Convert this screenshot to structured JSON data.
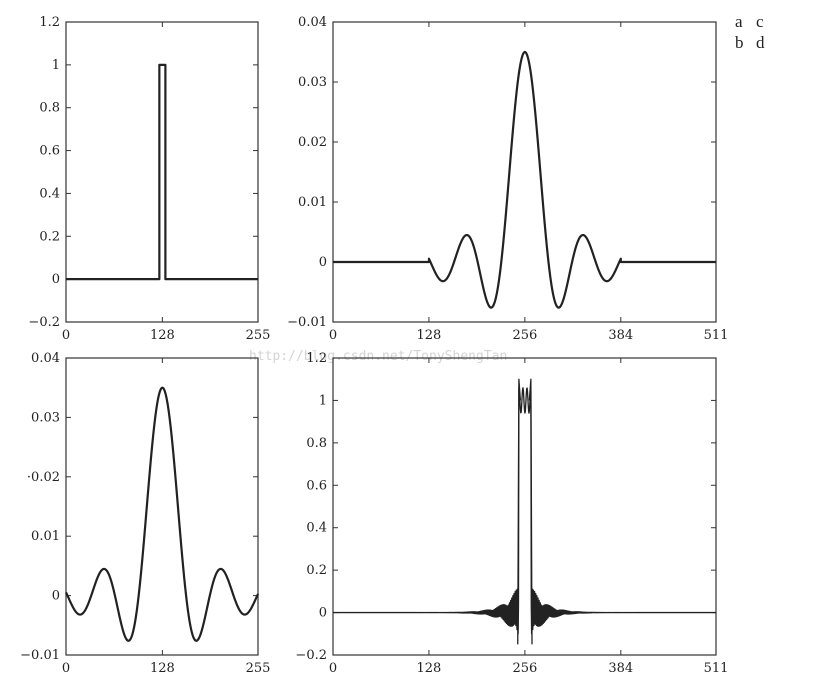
{
  "panel_labels": {
    "row1": [
      "a",
      "c"
    ],
    "row2": [
      "b",
      "d"
    ]
  },
  "watermark": "http://blog.csdn.net/TonyShengTan",
  "chart_data": [
    {
      "id": "a",
      "type": "line",
      "title": "",
      "xlabel": "",
      "ylabel": "",
      "xlim": [
        0,
        255
      ],
      "ylim": [
        -0.2,
        1.2
      ],
      "xticks": [
        0,
        128,
        255
      ],
      "yticks": [
        -0.2,
        0,
        0.2,
        0.4,
        0.6,
        0.8,
        1,
        1.2
      ],
      "ytick_labels": [
        "−0.2",
        "0",
        "0.2",
        "0.4",
        "0.6",
        "0.8",
        "1",
        "1.2"
      ],
      "xtick_labels": [
        "0",
        "128",
        "255"
      ],
      "series": [
        {
          "shape": "rectangular pulse",
          "x_start": 124,
          "x_end": 132,
          "height": 1,
          "baseline": 0
        }
      ]
    },
    {
      "id": "c",
      "type": "line",
      "title": "",
      "xlabel": "",
      "ylabel": "",
      "xlim": [
        0,
        511
      ],
      "ylim": [
        -0.01,
        0.04
      ],
      "xticks": [
        0,
        128,
        256,
        384,
        511
      ],
      "yticks": [
        -0.01,
        0,
        0.01,
        0.02,
        0.03,
        0.04
      ],
      "ytick_labels": [
        "−0.01",
        "0",
        "0.01",
        "0.02",
        "0.03",
        "0.04"
      ],
      "xtick_labels": [
        "0",
        "128",
        "256",
        "384",
        "511"
      ],
      "series": [
        {
          "shape": "truncated sinc (zero-padded)",
          "center": 256,
          "support": [
            128,
            384
          ],
          "peak": 0.035,
          "zero_spacing": 31.5,
          "edge_value": 0.004
        }
      ]
    },
    {
      "id": "b",
      "type": "line",
      "title": "",
      "xlabel": "",
      "ylabel": "",
      "xlim": [
        0,
        255
      ],
      "ylim": [
        -0.01,
        0.04
      ],
      "xticks": [
        0,
        128,
        255
      ],
      "yticks": [
        -0.01,
        0,
        0.01,
        0.02,
        0.03,
        0.04
      ],
      "ytick_labels": [
        "−0.01",
        "0",
        "0.01",
        "·0.02",
        "0.03",
        "0.04"
      ],
      "xtick_labels": [
        "0",
        "128",
        "255"
      ],
      "series": [
        {
          "shape": "truncated sinc",
          "center": 128,
          "support": [
            0,
            255
          ],
          "peak": 0.035,
          "zero_spacing": 31.5,
          "edge_value": 0.004
        }
      ]
    },
    {
      "id": "d",
      "type": "line",
      "title": "",
      "xlabel": "",
      "ylabel": "",
      "xlim": [
        0,
        511
      ],
      "ylim": [
        -0.2,
        1.2
      ],
      "xticks": [
        0,
        128,
        256,
        384,
        511
      ],
      "yticks": [
        -0.2,
        0,
        0.2,
        0.4,
        0.6,
        0.8,
        1,
        1.2
      ],
      "ytick_labels": [
        "−0.2",
        "0",
        "0.2",
        "0.4",
        "0.6",
        "0.8",
        "1",
        "1.2"
      ],
      "xtick_labels": [
        "0",
        "128",
        "256",
        "384",
        "511"
      ],
      "series": [
        {
          "shape": "pulse with Gibbs ringing",
          "x_start": 248,
          "x_end": 264,
          "height": 1,
          "overshoot": 1.1,
          "ripple_min": -0.15
        }
      ]
    }
  ]
}
